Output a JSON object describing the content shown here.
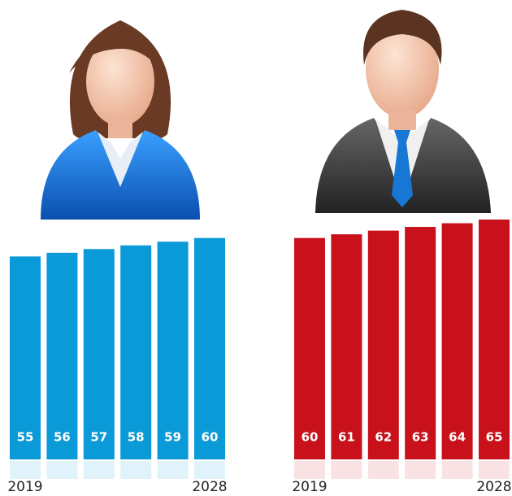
{
  "chart_data": [
    {
      "type": "bar",
      "categories": [
        "2019",
        null,
        null,
        null,
        null,
        "2028"
      ],
      "values": [
        55,
        56,
        57,
        58,
        59,
        60
      ],
      "color": "#0b9ad8"
    },
    {
      "type": "bar",
      "categories": [
        "2019",
        null,
        null,
        null,
        null,
        "2028"
      ],
      "values": [
        60,
        61,
        62,
        63,
        64,
        65
      ],
      "color": "#c8111a"
    }
  ]
}
